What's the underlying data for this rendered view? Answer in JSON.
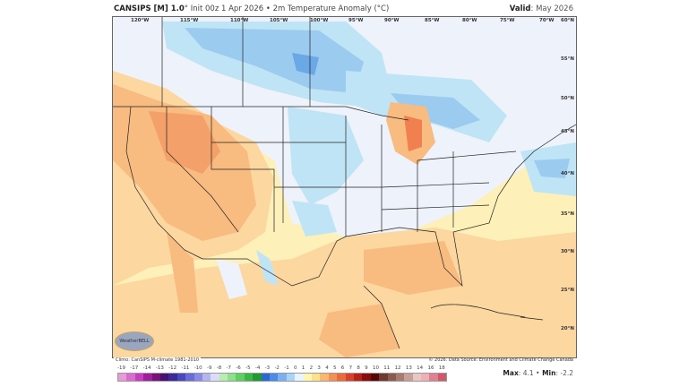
{
  "header": {
    "model": "CANSIPS [M] 1.0",
    "model_suffix": "°",
    "subtitle": "Init 00z 1 Apr 2026 • 2m Temperature Anomaly (°C)",
    "valid_label": "Valid",
    "valid_value": ": May 2026"
  },
  "map": {
    "longitude_labels": [
      "120°W",
      "115°W",
      "110°W",
      "105°W",
      "100°W",
      "95°W",
      "90°W",
      "85°W",
      "80°W",
      "75°W",
      "70°W",
      "60°N"
    ],
    "latitude_labels": [
      "55°N",
      "50°N",
      "45°N",
      "40°N",
      "35°N",
      "30°N",
      "25°N",
      "20°N"
    ],
    "logo_text": "WeatherBELL"
  },
  "footer": {
    "climo_note": "Climo: CanSIPS M-climate 1981-2010",
    "source_note": "© 2026. Data Source: Environment and Climate Change Canada",
    "max_label": "Max",
    "max_value": ": 4.1 •",
    "min_label": " Min",
    "min_value": ": -2.2"
  },
  "colorbar": {
    "tick_labels": [
      "-19",
      "-17",
      "-14",
      "-13",
      "-12",
      "-11",
      "-10",
      "-9",
      "-8",
      "-7",
      "-6",
      "-5",
      "-4",
      "-3",
      "-2",
      "-1",
      "0",
      "1",
      "2",
      "3",
      "4",
      "5",
      "6",
      "7",
      "8",
      "9",
      "10",
      "11",
      "12",
      "13",
      "14",
      "16",
      "18"
    ],
    "colors": [
      "#e89ad9",
      "#d96ccf",
      "#c93cbf",
      "#a01e9c",
      "#7a1078",
      "#4a1070",
      "#3a2a9a",
      "#4a46c0",
      "#6a6ad8",
      "#8a8ae8",
      "#b4b4f0",
      "#dcdcf8",
      "#b8ecb0",
      "#8ee08a",
      "#5ed060",
      "#38b840",
      "#1e9a2e",
      "#2a6ad0",
      "#4a8ae8",
      "#7ab0f0",
      "#a8d4f8",
      "#e8f4ff",
      "#fff6b0",
      "#fde08a",
      "#f8b870",
      "#f49050",
      "#ec6a3a",
      "#d8402a",
      "#b82018",
      "#8a0c0c",
      "#5a0606",
      "#6e3a30",
      "#8a5a50",
      "#a87a70",
      "#c8a098",
      "#e8c8c4",
      "#f0b0b8",
      "#e08090",
      "#d05868"
    ]
  }
}
